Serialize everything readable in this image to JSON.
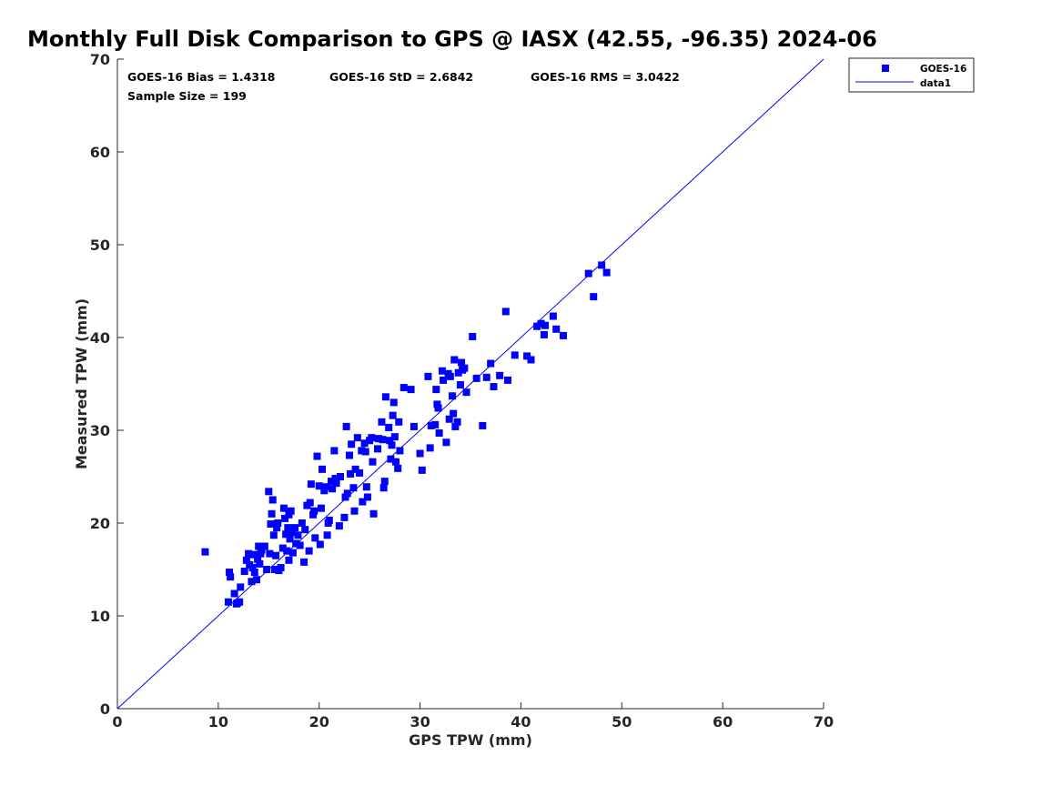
{
  "chart_data": {
    "type": "scatter",
    "title": "Monthly Full Disk Comparison to GPS @ IASX (42.55, -96.35) 2024-06",
    "xlabel": "GPS TPW (mm)",
    "ylabel": "Measured TPW (mm)",
    "xlim": [
      0,
      70
    ],
    "ylim": [
      0,
      70
    ],
    "xticks": [
      "0",
      "10",
      "20",
      "30",
      "40",
      "50",
      "60",
      "70"
    ],
    "yticks": [
      "0",
      "10",
      "20",
      "30",
      "40",
      "50",
      "60",
      "70"
    ],
    "grid": false,
    "legend_position": "top-right",
    "stats": {
      "bias": "GOES-16 Bias = 1.4318",
      "std": "GOES-16 StD = 2.6842",
      "rms": "GOES-16 RMS = 3.0422",
      "sample": "Sample Size = 199"
    },
    "series": [
      {
        "name": "GOES-16",
        "marker": "square",
        "color": "#0000ff",
        "points": [
          [
            8.7,
            16.9
          ],
          [
            11.0,
            11.5
          ],
          [
            11.1,
            14.7
          ],
          [
            11.2,
            14.2
          ],
          [
            11.6,
            12.4
          ],
          [
            11.9,
            11.4
          ],
          [
            11.8,
            11.3
          ],
          [
            12.1,
            11.5
          ],
          [
            12.2,
            13.1
          ],
          [
            12.6,
            14.8
          ],
          [
            12.8,
            16.0
          ],
          [
            13.0,
            16.7
          ],
          [
            13.1,
            15.5
          ],
          [
            13.3,
            13.7
          ],
          [
            13.4,
            15.2
          ],
          [
            13.5,
            16.6
          ],
          [
            13.6,
            14.7
          ],
          [
            13.8,
            13.9
          ],
          [
            13.9,
            16.1
          ],
          [
            14.0,
            17.5
          ],
          [
            14.1,
            15.6
          ],
          [
            14.2,
            16.7
          ],
          [
            14.3,
            17.1
          ],
          [
            14.6,
            17.5
          ],
          [
            14.8,
            15.0
          ],
          [
            15.0,
            23.4
          ],
          [
            15.1,
            16.7
          ],
          [
            15.2,
            19.9
          ],
          [
            15.3,
            21.0
          ],
          [
            15.4,
            22.5
          ],
          [
            15.5,
            18.7
          ],
          [
            15.6,
            15.0
          ],
          [
            15.7,
            16.5
          ],
          [
            15.8,
            19.5
          ],
          [
            15.9,
            20.0
          ],
          [
            16.0,
            14.9
          ],
          [
            16.2,
            15.2
          ],
          [
            16.4,
            17.3
          ],
          [
            16.5,
            21.6
          ],
          [
            16.6,
            20.5
          ],
          [
            16.7,
            18.8
          ],
          [
            16.8,
            17.0
          ],
          [
            16.9,
            19.5
          ],
          [
            17.0,
            16.0
          ],
          [
            17.0,
            20.9
          ],
          [
            17.1,
            18.3
          ],
          [
            17.2,
            21.3
          ],
          [
            17.3,
            19.0
          ],
          [
            17.4,
            16.8
          ],
          [
            17.6,
            19.5
          ],
          [
            17.7,
            17.8
          ],
          [
            17.9,
            18.7
          ],
          [
            18.1,
            17.6
          ],
          [
            18.3,
            20.0
          ],
          [
            18.5,
            15.8
          ],
          [
            18.6,
            19.3
          ],
          [
            18.8,
            21.9
          ],
          [
            19.0,
            17.0
          ],
          [
            19.1,
            22.2
          ],
          [
            19.2,
            24.2
          ],
          [
            19.4,
            20.9
          ],
          [
            19.5,
            21.3
          ],
          [
            19.6,
            18.4
          ],
          [
            19.8,
            27.2
          ],
          [
            20.0,
            24.0
          ],
          [
            20.1,
            17.7
          ],
          [
            20.2,
            21.6
          ],
          [
            20.3,
            25.8
          ],
          [
            20.5,
            23.5
          ],
          [
            20.7,
            23.9
          ],
          [
            20.8,
            18.7
          ],
          [
            20.9,
            20.0
          ],
          [
            21.0,
            20.3
          ],
          [
            21.2,
            24.5
          ],
          [
            21.3,
            23.7
          ],
          [
            21.5,
            27.8
          ],
          [
            21.6,
            24.8
          ],
          [
            21.7,
            24.3
          ],
          [
            22.0,
            19.7
          ],
          [
            22.1,
            25.0
          ],
          [
            22.5,
            20.6
          ],
          [
            22.6,
            22.8
          ],
          [
            22.7,
            30.4
          ],
          [
            22.8,
            23.2
          ],
          [
            23.0,
            27.3
          ],
          [
            23.1,
            25.3
          ],
          [
            23.2,
            28.5
          ],
          [
            23.4,
            23.8
          ],
          [
            23.5,
            21.3
          ],
          [
            23.6,
            25.8
          ],
          [
            23.8,
            29.2
          ],
          [
            24.0,
            25.4
          ],
          [
            24.2,
            27.8
          ],
          [
            24.3,
            22.3
          ],
          [
            24.5,
            28.6
          ],
          [
            24.6,
            27.7
          ],
          [
            24.7,
            23.9
          ],
          [
            24.8,
            22.8
          ],
          [
            25.0,
            28.9
          ],
          [
            25.2,
            29.2
          ],
          [
            25.3,
            26.6
          ],
          [
            25.4,
            21.0
          ],
          [
            25.8,
            28.0
          ],
          [
            25.9,
            29.1
          ],
          [
            26.2,
            30.9
          ],
          [
            26.3,
            29.0
          ],
          [
            26.4,
            23.8
          ],
          [
            26.5,
            24.5
          ],
          [
            26.6,
            33.6
          ],
          [
            26.9,
            30.3
          ],
          [
            27.0,
            28.9
          ],
          [
            27.1,
            26.9
          ],
          [
            27.2,
            28.4
          ],
          [
            27.3,
            31.6
          ],
          [
            27.4,
            33.0
          ],
          [
            27.5,
            29.3
          ],
          [
            27.6,
            26.6
          ],
          [
            27.8,
            25.9
          ],
          [
            27.9,
            30.9
          ],
          [
            28.0,
            27.8
          ],
          [
            28.4,
            34.6
          ],
          [
            29.1,
            34.4
          ],
          [
            29.4,
            30.4
          ],
          [
            30.0,
            27.5
          ],
          [
            30.2,
            25.7
          ],
          [
            30.8,
            35.8
          ],
          [
            31.0,
            28.1
          ],
          [
            31.1,
            30.5
          ],
          [
            31.5,
            30.6
          ],
          [
            31.6,
            34.4
          ],
          [
            31.7,
            32.8
          ],
          [
            31.8,
            32.4
          ],
          [
            31.9,
            29.7
          ],
          [
            32.2,
            36.4
          ],
          [
            32.3,
            35.4
          ],
          [
            32.6,
            28.7
          ],
          [
            32.8,
            36.1
          ],
          [
            32.9,
            31.2
          ],
          [
            33.0,
            35.8
          ],
          [
            33.2,
            33.7
          ],
          [
            33.3,
            31.8
          ],
          [
            33.4,
            37.6
          ],
          [
            33.5,
            30.4
          ],
          [
            33.7,
            30.9
          ],
          [
            33.8,
            36.2
          ],
          [
            34.0,
            34.9
          ],
          [
            34.1,
            37.3
          ],
          [
            34.2,
            36.5
          ],
          [
            34.4,
            36.7
          ],
          [
            34.6,
            34.1
          ],
          [
            35.2,
            40.1
          ],
          [
            35.6,
            35.6
          ],
          [
            36.2,
            30.5
          ],
          [
            36.6,
            35.7
          ],
          [
            37.0,
            37.2
          ],
          [
            37.3,
            34.7
          ],
          [
            37.9,
            35.9
          ],
          [
            38.5,
            42.8
          ],
          [
            38.7,
            35.4
          ],
          [
            39.4,
            38.1
          ],
          [
            40.6,
            38.0
          ],
          [
            41.0,
            37.6
          ],
          [
            41.6,
            41.2
          ],
          [
            42.0,
            41.5
          ],
          [
            42.3,
            40.3
          ],
          [
            42.4,
            41.3
          ],
          [
            43.2,
            42.3
          ],
          [
            43.5,
            40.9
          ],
          [
            44.2,
            40.2
          ],
          [
            46.7,
            46.9
          ],
          [
            47.2,
            44.4
          ],
          [
            48.0,
            47.8
          ],
          [
            48.5,
            47.0
          ]
        ]
      },
      {
        "name": "data1",
        "type": "line",
        "color": "#0000ff",
        "points": [
          [
            0,
            0
          ],
          [
            70,
            70
          ]
        ]
      }
    ]
  }
}
